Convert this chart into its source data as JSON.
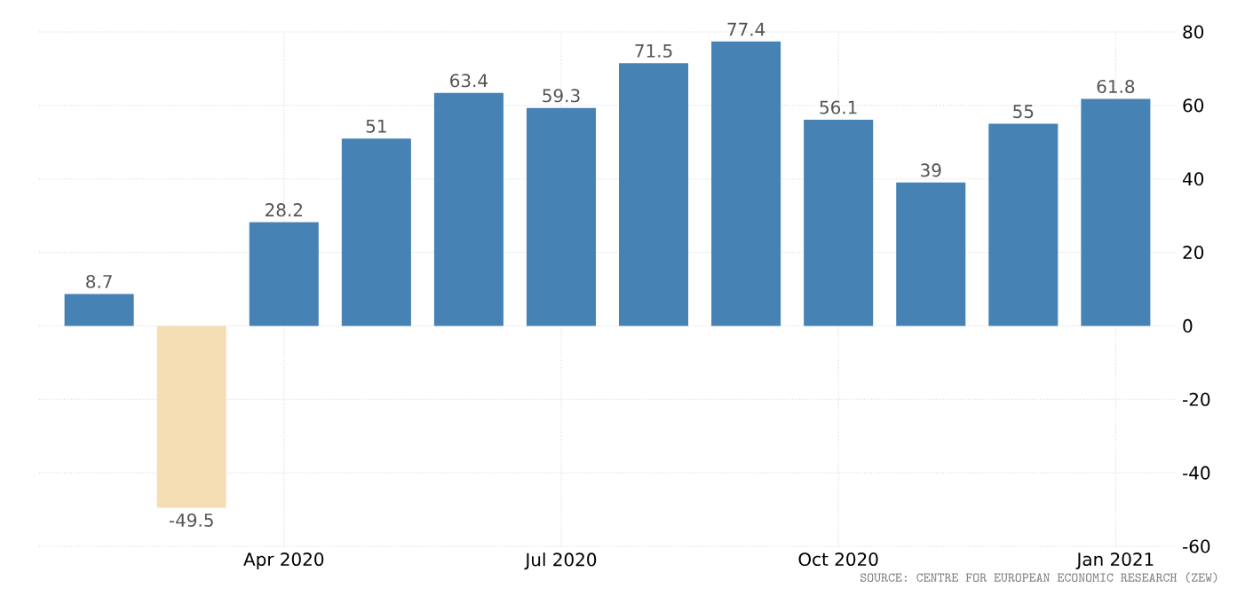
{
  "chart_data": {
    "type": "bar",
    "categories": [
      null,
      null,
      "Apr 2020",
      null,
      null,
      "Jul 2020",
      null,
      null,
      "Oct 2020",
      null,
      null,
      "Jan 2021"
    ],
    "values": [
      8.7,
      -49.5,
      28.2,
      51,
      63.4,
      59.3,
      71.5,
      77.4,
      56.1,
      39,
      55,
      61.8
    ],
    "colors": [
      "#4682b4",
      "#f5deb3",
      "#4682b4",
      "#4682b4",
      "#4682b4",
      "#4682b4",
      "#4682b4",
      "#4682b4",
      "#4682b4",
      "#4682b4",
      "#4682b4",
      "#4682b4"
    ],
    "data_labels": true,
    "ylim": [
      -60,
      80
    ],
    "yticks": [
      -60,
      -40,
      -20,
      0,
      20,
      40,
      60,
      80
    ],
    "grid": true,
    "annotations": [
      "SOURCE: CENTRE FOR EUROPEAN ECONOMIC RESEARCH (ZEW)"
    ]
  }
}
